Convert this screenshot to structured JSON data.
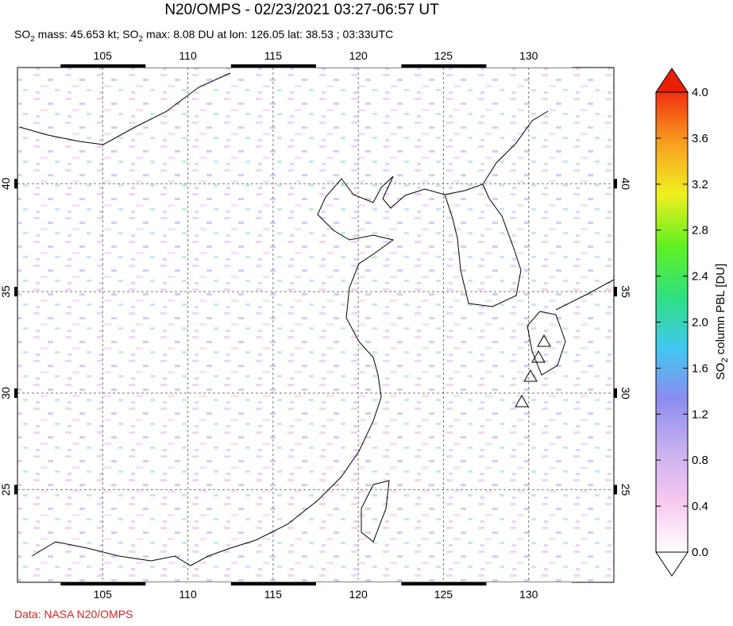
{
  "header": {
    "title": "N20/OMPS - 02/23/2021 03:27-06:57 UT",
    "subtitle_parts": [
      "SO",
      "2",
      " mass: 45.653 kt; SO",
      "2",
      " max: 8.08 DU at lon: 126.05 lat: 38.53 ; 03:33UTC"
    ]
  },
  "map": {
    "lon_range": [
      100,
      135
    ],
    "lat_range": [
      20,
      45
    ],
    "lon_ticks": [
      105,
      110,
      115,
      120,
      125,
      130
    ],
    "lat_ticks": [
      25,
      30,
      35,
      40
    ]
  },
  "colorbar": {
    "label_parts": [
      "SO",
      "2",
      " column PBL [DU]"
    ],
    "range": [
      0,
      4
    ],
    "colors": [
      "#ffffff",
      "#f7c8f0",
      "#c8b0f0",
      "#8c8cf0",
      "#40c8f0",
      "#30e080",
      "#60f020",
      "#f0f020",
      "#f8a020",
      "#f03010"
    ],
    "ticks": [
      {
        "value": 0,
        "label": "0.0"
      },
      {
        "value": 0.4,
        "label": "0.4"
      },
      {
        "value": 0.8,
        "label": "0.8"
      },
      {
        "value": 1.2,
        "label": "1.2"
      },
      {
        "value": 1.6,
        "label": "1.6"
      },
      {
        "value": 2.0,
        "label": "2.0"
      },
      {
        "value": 2.4,
        "label": "2.4"
      },
      {
        "value": 2.8,
        "label": "2.8"
      },
      {
        "value": 3.2,
        "label": "3.2"
      },
      {
        "value": 3.6,
        "label": "3.6"
      },
      {
        "value": 4.0,
        "label": "4.0"
      }
    ]
  },
  "credit": "Data: NASA N20/OMPS"
}
